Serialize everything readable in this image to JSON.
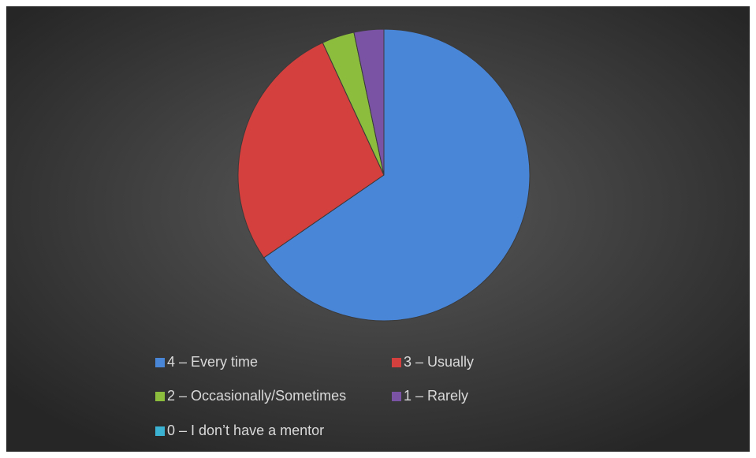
{
  "chart_data": {
    "type": "pie",
    "categories": [
      "4 – Every time",
      "3 – Usually",
      "2 – Occasionally/Sometimes",
      "1 – Rarely",
      "0 – I don’t have a mentor"
    ],
    "values": [
      65.4,
      27.7,
      3.6,
      3.3,
      0
    ],
    "colors": [
      "#4a86d8",
      "#d3403d",
      "#8cbd3c",
      "#7b53a5",
      "#3cb2d2"
    ],
    "legend": "bottom"
  }
}
